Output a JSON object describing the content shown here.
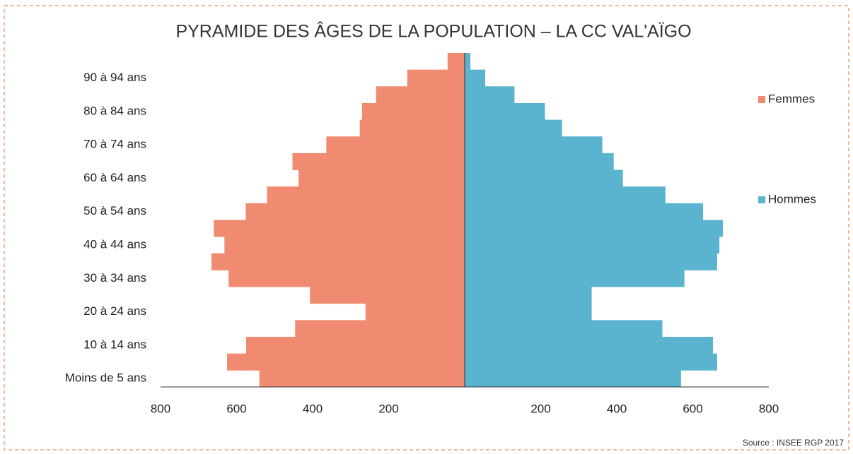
{
  "chart_data": {
    "type": "pyramid",
    "title": "PYRAMIDE DES ÂGES DE LA POPULATION – LA CC VAL'AÏGO",
    "source": "Source : INSEE RGP 2017",
    "categories": [
      "Moins de 5 ans",
      null,
      "10 à 14 ans",
      null,
      "20 à 24 ans",
      null,
      "30 à 34 ans",
      null,
      "40 à 44 ans",
      null,
      "50 à 54 ans",
      null,
      "60 à 64 ans",
      null,
      "70 à 74 ans",
      null,
      "80 à 84 ans",
      null,
      "90 à 94 ans",
      null
    ],
    "series": [
      {
        "name": "Femmes",
        "color": "#f08a70",
        "values": [
          540,
          625,
          575,
          446,
          261,
          407,
          621,
          666,
          632,
          660,
          576,
          520,
          437,
          453,
          364,
          276,
          270,
          233,
          151,
          45
        ]
      },
      {
        "name": "Hommes",
        "color": "#5ab4cf",
        "values": [
          569,
          664,
          653,
          520,
          334,
          334,
          578,
          664,
          670,
          679,
          627,
          528,
          416,
          392,
          362,
          256,
          211,
          131,
          54,
          15
        ]
      }
    ],
    "xlim": [
      0,
      800
    ],
    "xticks": [
      200,
      400,
      600,
      800
    ]
  }
}
